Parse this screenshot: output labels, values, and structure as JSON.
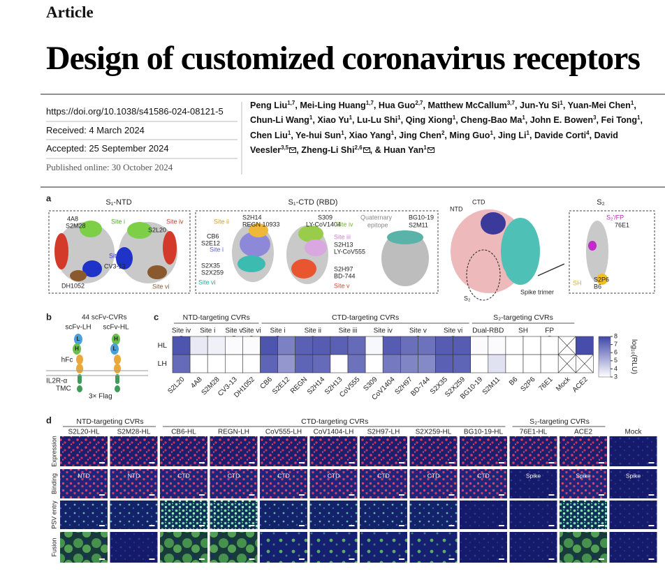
{
  "header": {
    "journal_section": "Article",
    "title": "Design of customized coronavirus receptors"
  },
  "meta": {
    "doi": "https://doi.org/10.1038/s41586-024-08121-5",
    "received": "Received: 4 March 2024",
    "accepted": "Accepted: 25 September 2024",
    "published": "Published online: 30 October 2024"
  },
  "authors": {
    "conjunction": "&",
    "list": [
      {
        "name": "Peng Liu",
        "affil": "1,7"
      },
      {
        "name": "Mei-Ling Huang",
        "affil": "1,7"
      },
      {
        "name": "Hua Guo",
        "affil": "2,7"
      },
      {
        "name": "Matthew McCallum",
        "affil": "3,7"
      },
      {
        "name": "Jun-Yu Si",
        "affil": "1"
      },
      {
        "name": "Yuan-Mei Chen",
        "affil": "1"
      },
      {
        "name": "Chun-Li Wang",
        "affil": "1"
      },
      {
        "name": "Xiao Yu",
        "affil": "1"
      },
      {
        "name": "Lu-Lu Shi",
        "affil": "1"
      },
      {
        "name": "Qing Xiong",
        "affil": "1"
      },
      {
        "name": "Cheng-Bao Ma",
        "affil": "1"
      },
      {
        "name": "John E. Bowen",
        "affil": "3"
      },
      {
        "name": "Fei Tong",
        "affil": "1"
      },
      {
        "name": "Chen Liu",
        "affil": "1"
      },
      {
        "name": "Ye-hui Sun",
        "affil": "1"
      },
      {
        "name": "Xiao Yang",
        "affil": "1"
      },
      {
        "name": "Jing Chen",
        "affil": "2"
      },
      {
        "name": "Ming Guo",
        "affil": "1"
      },
      {
        "name": "Jing Li",
        "affil": "1"
      },
      {
        "name": "Davide Corti",
        "affil": "4"
      },
      {
        "name": "David Veesler",
        "affil": "3,5",
        "corresponding": true
      },
      {
        "name": "Zheng-Li Shi",
        "affil": "2,6",
        "corresponding": true
      },
      {
        "name": "Huan Yan",
        "affil": "1",
        "corresponding": true
      }
    ]
  },
  "figure": {
    "panel_a": {
      "label": "a",
      "ntd": {
        "title": "S₁-NTD",
        "antibodies": [
          "4A8",
          "S2M28",
          "S2L20",
          "CV3-13",
          "DH1052"
        ],
        "sites": [
          "Site i",
          "Site iv",
          "Site v",
          "Site vi"
        ]
      },
      "ctd": {
        "title": "S₁-CTD (RBD)",
        "antibodies": [
          "S2H14",
          "REGN 10933",
          "CB6",
          "S2E12",
          "S2X35",
          "S2X259",
          "S309",
          "LY-CoV1404",
          "S2H13",
          "LY-CoV555",
          "S2H97",
          "BD-744"
        ],
        "sites": [
          "Site ii",
          "Site i",
          "Site vi",
          "Site iv",
          "Site iii",
          "Site v"
        ],
        "quaternary": [
          "Quaternary",
          "epitope"
        ],
        "quaternary_antibodies": [
          "BG10-19",
          "S2M11"
        ]
      },
      "trimer": {
        "labels": [
          "NTD",
          "CTD",
          "S₂",
          "Spike trimer"
        ]
      },
      "s2": {
        "title": "S₂",
        "sites": [
          "S₂′/FP",
          "SH"
        ],
        "antibodies": [
          "76E1",
          "S2P6",
          "B6"
        ]
      }
    },
    "panel_b": {
      "label": "b",
      "title": "44 scFv-CVRs",
      "formats": [
        "scFv-LH",
        "scFv-HL"
      ],
      "chains": [
        "L",
        "H"
      ],
      "hfc": "hFc",
      "tmc": [
        "IL2R-α",
        "TMC"
      ],
      "flag": "3× Flag"
    },
    "panel_c": {
      "label": "c",
      "groups": [
        "NTD-targeting CVRs",
        "CTD-targeting CVRs",
        "S₂-targeting CVRs"
      ],
      "sites": [
        {
          "name": "Site iv",
          "color": "#d7422b"
        },
        {
          "name": "Site i",
          "color": "#79c043"
        },
        {
          "name": "Site v",
          "color": "#3a4fb8"
        },
        {
          "name": "Site vi",
          "color": "#8b5a2b"
        },
        {
          "name": "Site i",
          "color": "#6a6ec0"
        },
        {
          "name": "Site ii",
          "color": "#e8a93a"
        },
        {
          "name": "Site iii",
          "color": "#d59bd6"
        },
        {
          "name": "Site iv",
          "color": "#8cc63f"
        },
        {
          "name": "Site v",
          "color": "#e0533a"
        },
        {
          "name": "Site vi",
          "color": "#3fb2a7"
        },
        {
          "name": "Dual-RBD",
          "color": "#9a9a9a"
        },
        {
          "name": "SH",
          "color": "#f0c020"
        },
        {
          "name": "FP",
          "color": "#9b3fa0"
        }
      ],
      "heatmap": {
        "rows": [
          "HL",
          "LH"
        ],
        "columns": [
          "S2L20",
          "4A8",
          "S2M28",
          "CV3-13",
          "DH1052",
          "CB6",
          "S2E12",
          "REGN",
          "S2H14",
          "S2H13",
          "CoV555",
          "S309",
          "CoV1404",
          "S2H97",
          "BD-744",
          "S2X35",
          "S2X259",
          "BG10-19",
          "S2M11",
          "B6",
          "S2P6",
          "76E1",
          "Mock",
          "ACE2"
        ],
        "values": [
          [
            7.6,
            3.6,
            3.4,
            3.1,
            3.1,
            7.6,
            6.4,
            7.3,
            7.4,
            7.3,
            7.0,
            3.2,
            7.4,
            6.9,
            6.8,
            7.4,
            7.4,
            3.1,
            3.1,
            3.0,
            3.0,
            3.0,
            null,
            7.8
          ],
          [
            7.0,
            3.0,
            3.0,
            3.0,
            3.0,
            7.2,
            5.8,
            7.2,
            7.0,
            3.0,
            6.8,
            3.0,
            6.6,
            6.3,
            6.2,
            7.3,
            7.2,
            3.0,
            3.8,
            3.0,
            3.0,
            3.0,
            null,
            null
          ]
        ],
        "color_low": "#ffffff",
        "color_high": "#3f46a8"
      },
      "colorbar": {
        "label": "log₁₀(RLU)",
        "range": [
          3,
          8
        ],
        "ticks": [
          3,
          4,
          5,
          6,
          7,
          8
        ]
      }
    },
    "panel_d": {
      "label": "d",
      "groups": [
        "NTD-targeting CVRs",
        "CTD-targeting CVRs",
        "S₂-targeting CVRs"
      ],
      "columns": [
        "S2L20-HL",
        "S2M28-HL",
        "CB6-HL",
        "REGN-LH",
        "CoV555-LH",
        "CoV1404-LH",
        "S2H97-LH",
        "S2X259-HL",
        "BG10-19-HL",
        "76E1-HL",
        "ACE2",
        "Mock"
      ],
      "rows": [
        "Expression",
        "Binding",
        "PSV entry",
        "Fusion"
      ],
      "binding_labels": [
        "NTD",
        "NTD",
        "CTD",
        "CTD",
        "CTD",
        "CTD",
        "CTD",
        "CTD",
        "CTD",
        "Spike",
        "Spike",
        "Spike"
      ]
    }
  }
}
